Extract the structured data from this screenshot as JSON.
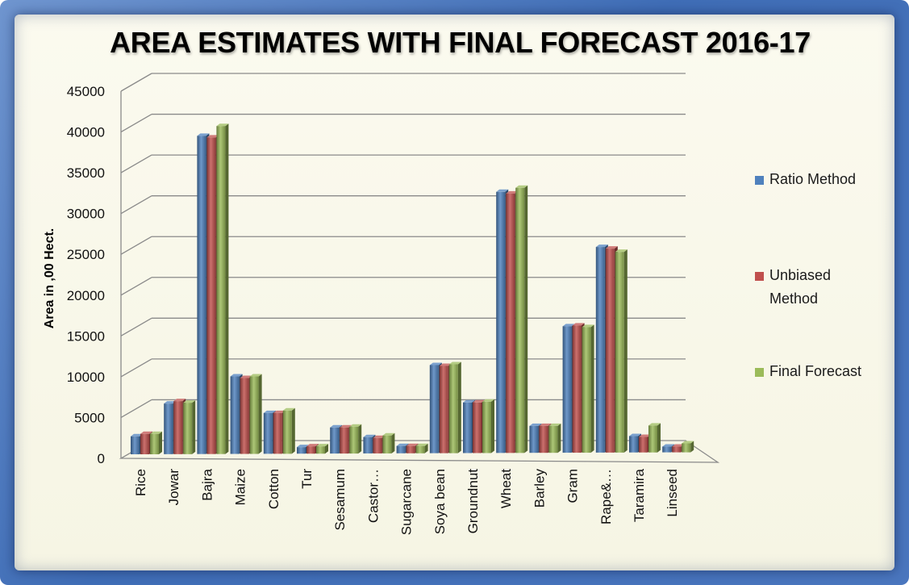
{
  "chart_data": {
    "type": "bar",
    "title": "AREA ESTIMATES WITH FINAL FORECAST 2016-17",
    "xlabel": "",
    "ylabel": "Area in ,00 Hect.",
    "ylim": [
      0,
      45000
    ],
    "yticks": [
      "0",
      "5000",
      "10000",
      "15000",
      "20000",
      "25000",
      "30000",
      "35000",
      "40000",
      "45000"
    ],
    "categories": [
      "Rice",
      "Jowar",
      "Bajra",
      "Maize",
      "Cotton",
      "Tur",
      "Sesamum",
      "Castor…",
      "Sugarcane",
      "Soya bean",
      "Groundnut",
      "Wheat",
      "Barley",
      "Gram",
      "Rape&…",
      "Taramira",
      "Linseed"
    ],
    "series": [
      {
        "name": "Ratio Method",
        "color": "#4f81bd",
        "values": [
          2200,
          6200,
          39000,
          9500,
          5000,
          800,
          3200,
          2000,
          900,
          10800,
          6200,
          32000,
          3300,
          15500,
          25200,
          2000,
          700
        ]
      },
      {
        "name": "Unbiased Method",
        "color": "#c0504d",
        "values": [
          2500,
          6500,
          38800,
          9300,
          5000,
          900,
          3200,
          1900,
          900,
          10700,
          6200,
          31800,
          3300,
          15600,
          25000,
          1900,
          700
        ]
      },
      {
        "name": "Final Forecast",
        "color": "#9bbb59",
        "values": [
          2500,
          6300,
          40200,
          9500,
          5300,
          900,
          3300,
          2200,
          900,
          10900,
          6300,
          32500,
          3300,
          15400,
          24600,
          3300,
          1100
        ]
      }
    ],
    "grid": true,
    "legend_position": "right"
  }
}
